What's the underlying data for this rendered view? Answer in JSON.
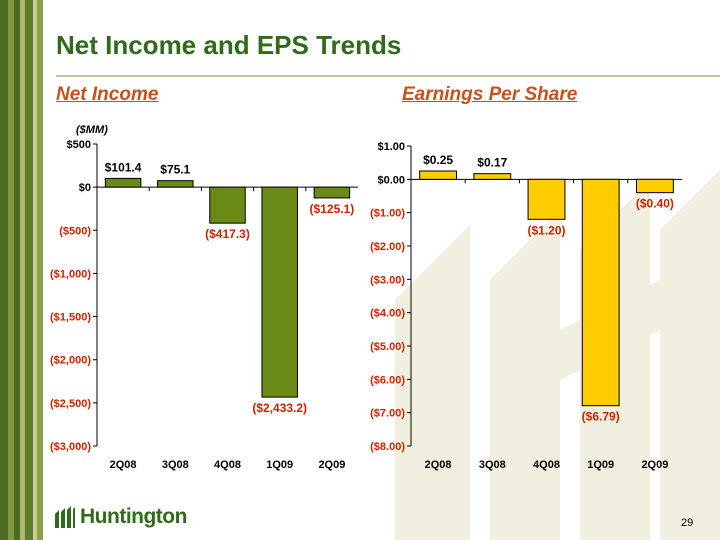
{
  "slide": {
    "title": "Net Income and EPS Trends",
    "page_number": "29",
    "logo_text": "Huntington"
  },
  "colors": {
    "green_bar": "#6a8a16",
    "yellow_bar": "#ffcc00",
    "title": "#2f6b1a",
    "negative_label": "#cc2200"
  },
  "chart_data": [
    {
      "type": "bar",
      "title": "Net Income",
      "unit_label": "($MM)",
      "categories": [
        "2Q08",
        "3Q08",
        "4Q08",
        "1Q09",
        "2Q09"
      ],
      "values": [
        101.4,
        75.1,
        -417.3,
        -2433.2,
        -125.1
      ],
      "value_labels": [
        "$101.4",
        "$75.1",
        "($417.3)",
        "($2,433.2)",
        "($125.1)"
      ],
      "ylim": [
        -3000,
        500
      ],
      "yticks": [
        500,
        0,
        -500,
        -1000,
        -1500,
        -2000,
        -2500,
        -3000
      ],
      "ytick_labels": [
        "$500",
        "$0",
        "($500)",
        "($1,000)",
        "($1,500)",
        "($2,000)",
        "($2,500)",
        "($3,000)"
      ],
      "xlabel": "",
      "ylabel": "",
      "grid": false,
      "color": "#6a8a16"
    },
    {
      "type": "bar",
      "title": "Earnings Per Share",
      "categories": [
        "2Q08",
        "3Q08",
        "4Q08",
        "1Q09",
        "2Q09"
      ],
      "values": [
        0.25,
        0.17,
        -1.2,
        -6.79,
        -0.4
      ],
      "value_labels": [
        "$0.25",
        "$0.17",
        "($1.20)",
        "($6.79)",
        "($0.40)"
      ],
      "ylim": [
        -8,
        1
      ],
      "yticks": [
        1,
        0,
        -1,
        -2,
        -3,
        -4,
        -5,
        -6,
        -7,
        -8
      ],
      "ytick_labels": [
        "$1.00",
        "$0.00",
        "($1.00)",
        "($2.00)",
        "($3.00)",
        "($4.00)",
        "($5.00)",
        "($6.00)",
        "($7.00)",
        "($8.00)"
      ],
      "xlabel": "",
      "ylabel": "",
      "grid": false,
      "color": "#ffcc00"
    }
  ]
}
